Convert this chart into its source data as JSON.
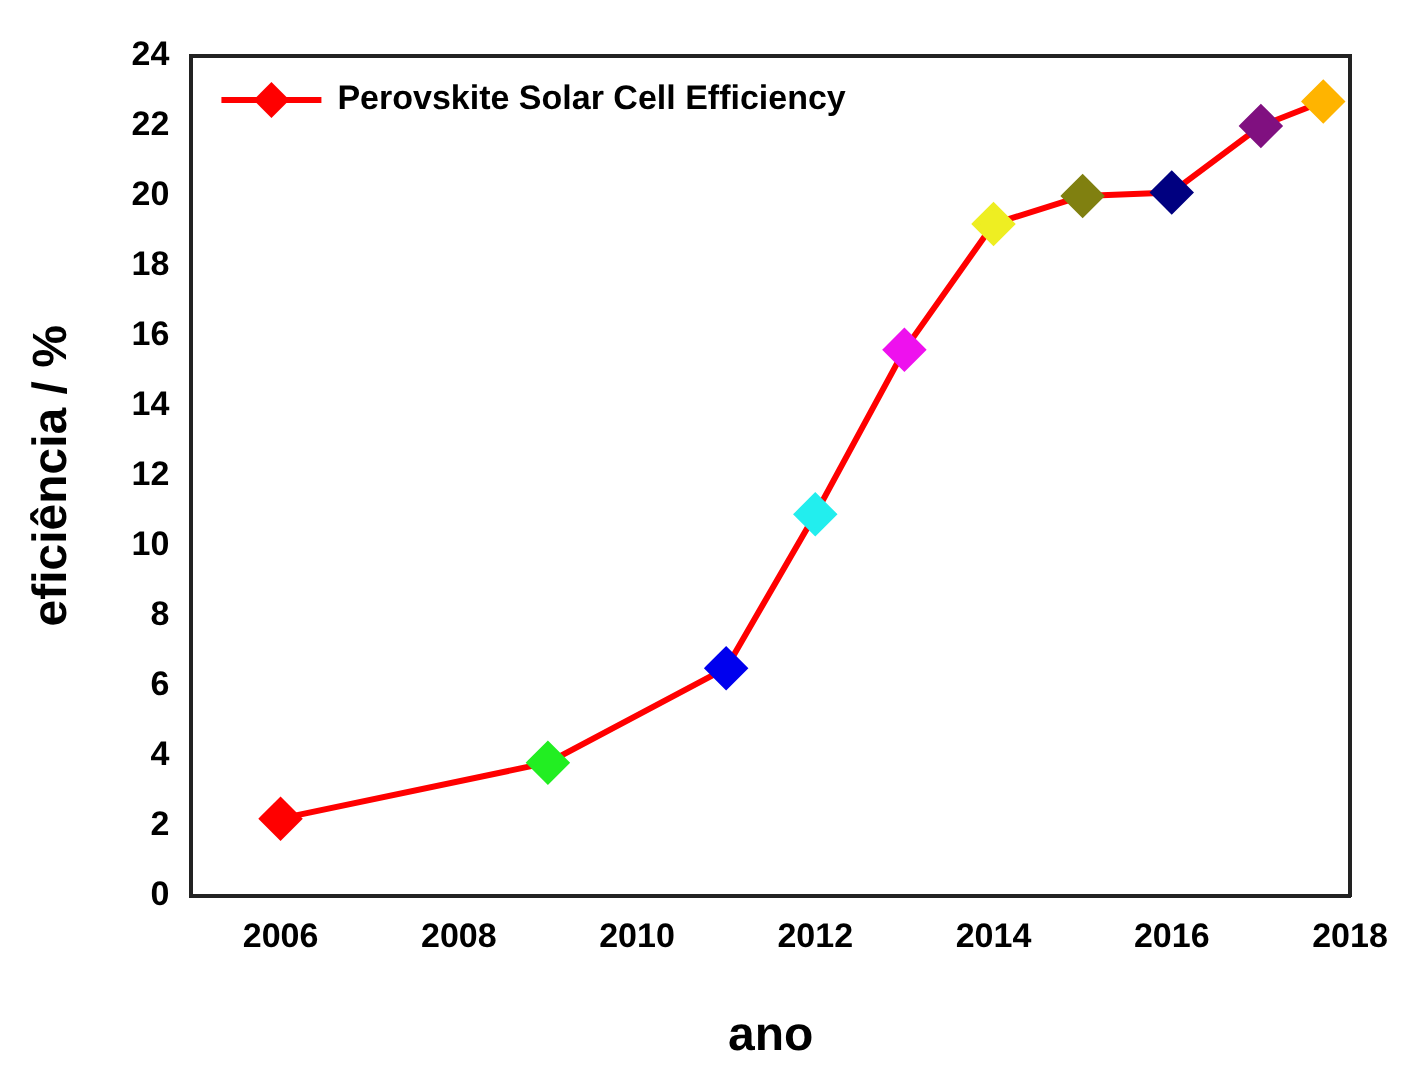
{
  "chart_data": {
    "type": "line",
    "xlabel": "ano",
    "ylabel": "eficiência / %",
    "x": [
      2006,
      2009,
      2011,
      2012,
      2013,
      2014,
      2015,
      2016,
      2017,
      2017.7
    ],
    "series": [
      {
        "name": "Perovskite Solar Cell Efficiency",
        "color": "#ff0000",
        "colors": [
          "#ff0000",
          "#22ee22",
          "#0000ee",
          "#22eeee",
          "#ee11ee",
          "#eeee22",
          "#808010",
          "#000080",
          "#801080",
          "#ffb400"
        ],
        "values": [
          2.2,
          3.8,
          6.5,
          10.9,
          15.6,
          19.2,
          20.0,
          20.1,
          22.0,
          22.7
        ]
      }
    ],
    "xlim": [
      2005,
      2018
    ],
    "xticks": [
      2006,
      2008,
      2010,
      2012,
      2014,
      2016,
      2018
    ],
    "ylim": [
      0,
      24
    ],
    "yticks": [
      0,
      2,
      4,
      6,
      8,
      10,
      12,
      14,
      16,
      18,
      20,
      22,
      24
    ],
    "legend": "top left",
    "marker": "diamond",
    "line_style": "solid",
    "grid": false
  }
}
